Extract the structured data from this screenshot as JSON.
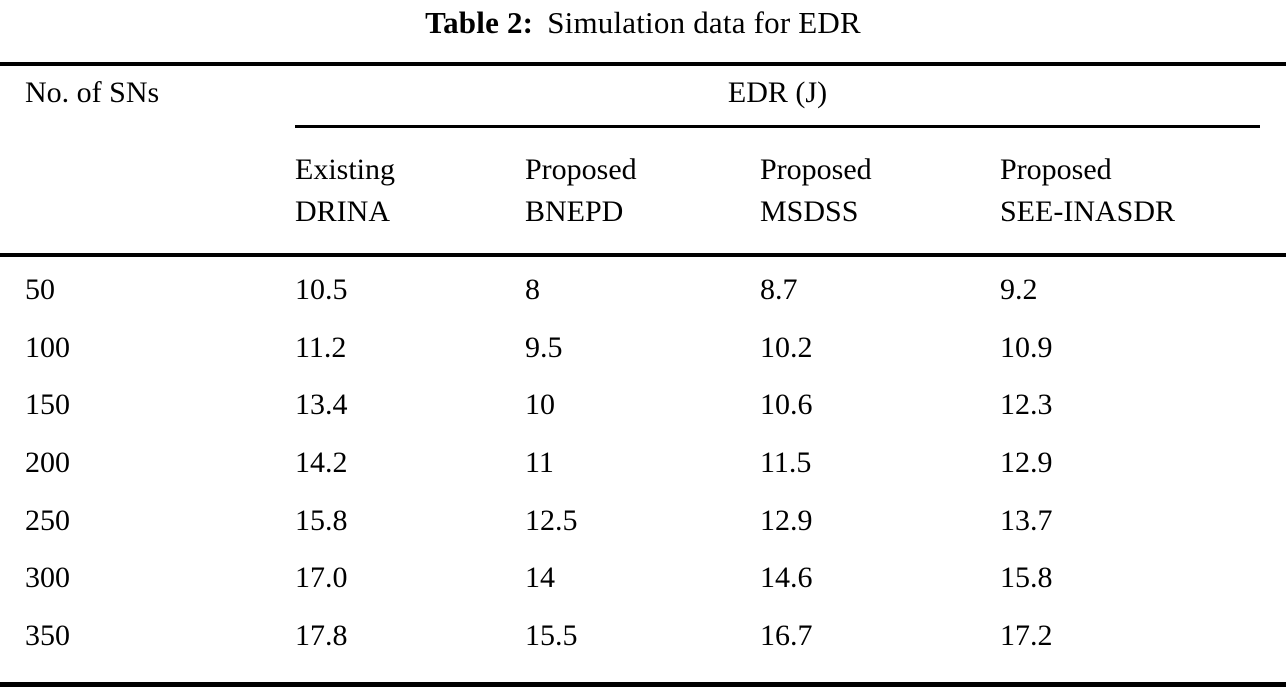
{
  "title": {
    "label": "Table 2:",
    "text": "Simulation data for EDR"
  },
  "table": {
    "row_header": "No. of SNs",
    "group_header": "EDR (J)",
    "columns": [
      {
        "line1": "Existing",
        "line2": "DRINA"
      },
      {
        "line1": "Proposed",
        "line2": "BNEPD"
      },
      {
        "line1": "Proposed",
        "line2": "MSDSS"
      },
      {
        "line1": "Proposed",
        "line2": "SEE-INASDR"
      }
    ],
    "rows": [
      {
        "sns": "50",
        "values": [
          "10.5",
          "8",
          "8.7",
          "9.2"
        ]
      },
      {
        "sns": "100",
        "values": [
          "11.2",
          "9.5",
          "10.2",
          "10.9"
        ]
      },
      {
        "sns": "150",
        "values": [
          "13.4",
          "10",
          "10.6",
          "12.3"
        ]
      },
      {
        "sns": "200",
        "values": [
          "14.2",
          "11",
          "11.5",
          "12.9"
        ]
      },
      {
        "sns": "250",
        "values": [
          "15.8",
          "12.5",
          "12.9",
          "13.7"
        ]
      },
      {
        "sns": "300",
        "values": [
          "17.0",
          "14",
          "14.6",
          "15.8"
        ]
      },
      {
        "sns": "350",
        "values": [
          "17.8",
          "15.5",
          "16.7",
          "17.2"
        ]
      }
    ]
  },
  "chart_data": {
    "type": "table",
    "title": "Table 2: Simulation data for EDR",
    "group_header": "EDR (J)",
    "columns": [
      "No. of SNs",
      "Existing DRINA",
      "Proposed BNEPD",
      "Proposed MSDSS",
      "Proposed SEE-INASDR"
    ],
    "rows": [
      [
        50,
        10.5,
        8,
        8.7,
        9.2
      ],
      [
        100,
        11.2,
        9.5,
        10.2,
        10.9
      ],
      [
        150,
        13.4,
        10,
        10.6,
        12.3
      ],
      [
        200,
        14.2,
        11,
        11.5,
        12.9
      ],
      [
        250,
        15.8,
        12.5,
        12.9,
        13.7
      ],
      [
        300,
        17.0,
        14,
        14.6,
        15.8
      ],
      [
        350,
        17.8,
        15.5,
        16.7,
        17.2
      ]
    ]
  }
}
